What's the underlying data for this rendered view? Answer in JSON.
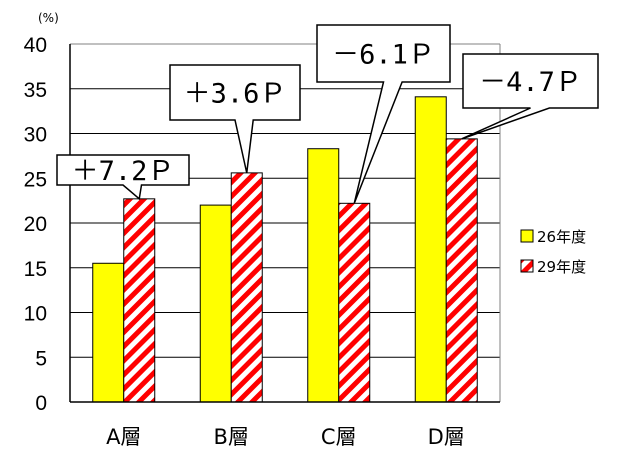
{
  "chart_data": {
    "type": "bar",
    "unit_label": "(%)",
    "categories": [
      "A層",
      "B層",
      "C層",
      "D層"
    ],
    "series": [
      {
        "name": "26年度",
        "values": [
          15.5,
          22.0,
          28.3,
          34.1
        ],
        "color": "#ffff00",
        "pattern": "solid"
      },
      {
        "name": "29年度",
        "values": [
          22.7,
          25.6,
          22.2,
          29.4
        ],
        "color": "#ff0000",
        "pattern": "diagonal-stripes"
      }
    ],
    "annotations": [
      "＋7.2Ｐ",
      "＋3.6Ｐ",
      "－6.1Ｐ",
      "－4.7Ｐ"
    ],
    "ylim": [
      0,
      40
    ],
    "yticks": [
      0,
      5,
      10,
      15,
      20,
      25,
      30,
      35,
      40
    ],
    "grid": true,
    "legend_position": "right"
  }
}
